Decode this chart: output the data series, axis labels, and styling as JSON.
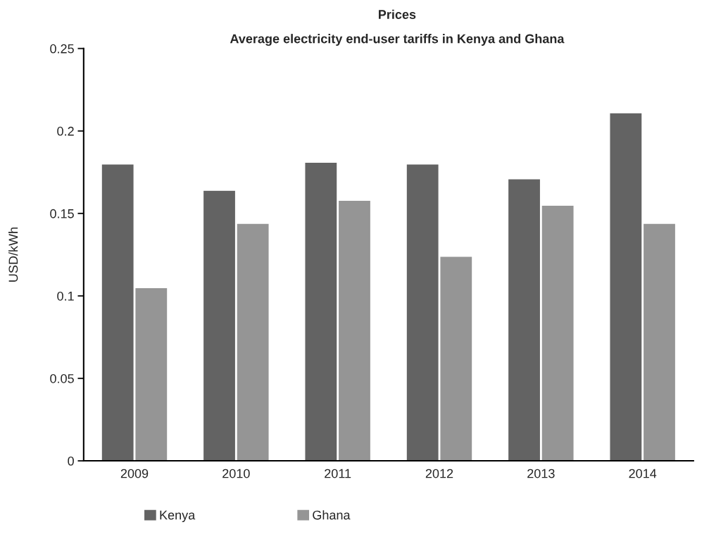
{
  "chart_data": {
    "type": "bar",
    "title": "Prices",
    "subtitle": "Average electricity end-user tariffs in Kenya and Ghana",
    "ylabel": "USD/kWh",
    "categories": [
      "2009",
      "2010",
      "2011",
      "2012",
      "2013",
      "2014"
    ],
    "series": [
      {
        "name": "Kenya",
        "color": "#636363",
        "values": [
          0.18,
          0.164,
          0.181,
          0.18,
          0.171,
          0.211
        ]
      },
      {
        "name": "Ghana",
        "color": "#959595",
        "values": [
          0.105,
          0.144,
          0.158,
          0.124,
          0.155,
          0.144
        ]
      }
    ],
    "ylim": [
      0,
      0.25
    ],
    "yticks": [
      0,
      0.05,
      0.1,
      0.15,
      0.2,
      0.25
    ],
    "grid": false,
    "legend": "bottom left"
  }
}
